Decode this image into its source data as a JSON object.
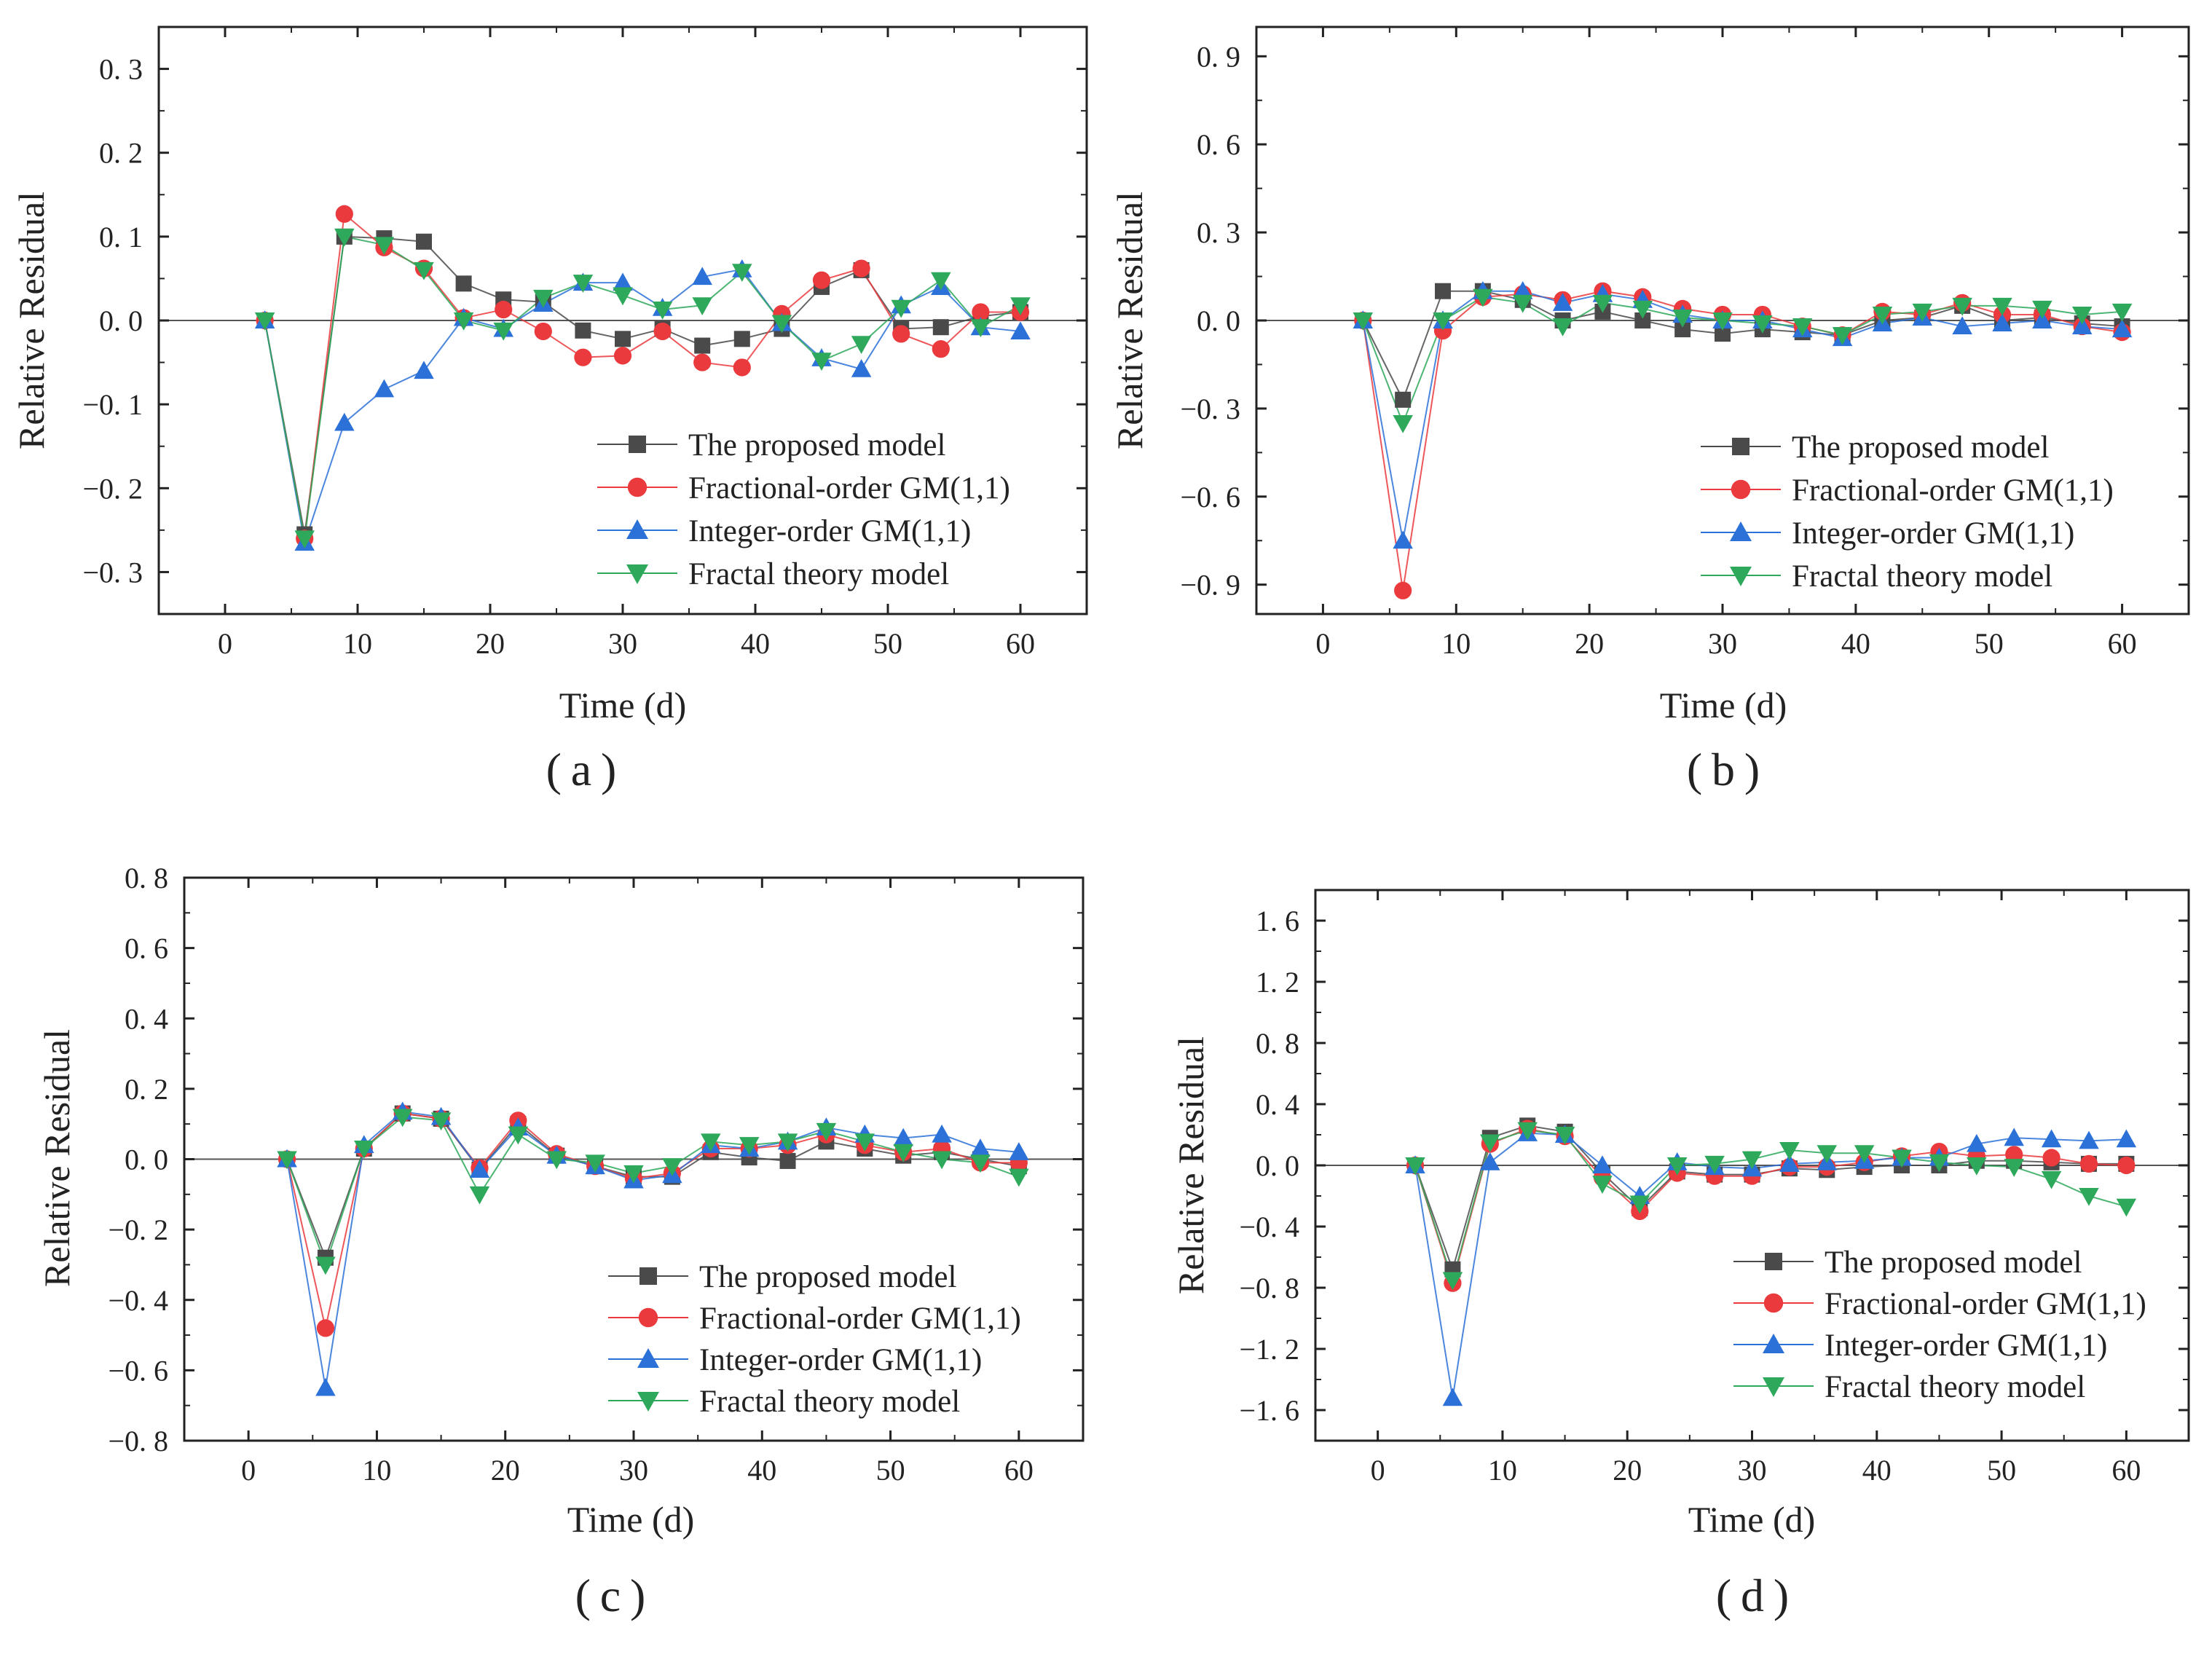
{
  "figure": {
    "panels": [
      "(a)",
      "(b)",
      "(c)",
      "(d)"
    ]
  },
  "colors": {
    "proposed": "#4a4a4a",
    "fractional": "#ea3a3d",
    "integer": "#2b71d8",
    "fractal": "#2ea85a"
  },
  "chart_data": [
    {
      "type": "line",
      "caption": "(a)",
      "xlabel": "Time (d)",
      "ylabel": "Relative Residual",
      "xlim": [
        -5,
        65
      ],
      "ylim": [
        -0.35,
        0.35
      ],
      "xticks": [
        0,
        10,
        20,
        30,
        40,
        50,
        60
      ],
      "xtick_labels": [
        "0",
        "10",
        "20",
        "30",
        "40",
        "50",
        "60"
      ],
      "yticks": [
        -0.3,
        -0.2,
        -0.1,
        0.0,
        0.1,
        0.2,
        0.3
      ],
      "ytick_labels": [
        "−0. 3",
        "−0. 2",
        "−0. 1",
        "0. 0",
        "0. 1",
        "0. 2",
        "0. 3"
      ],
      "legend_position": "bottom-right",
      "x": [
        3,
        6,
        9,
        12,
        15,
        18,
        21,
        24,
        27,
        30,
        33,
        36,
        39,
        42,
        45,
        48,
        51,
        54,
        57,
        60
      ],
      "series": [
        {
          "name": "The proposed model",
          "marker": "square",
          "color_key": "proposed",
          "values": [
            0,
            -0.255,
            0.1,
            0.098,
            0.094,
            0.044,
            0.025,
            0.022,
            -0.012,
            -0.022,
            -0.01,
            -0.03,
            -0.022,
            -0.01,
            0.04,
            0.06,
            -0.01,
            -0.008,
            0.005,
            0.01
          ]
        },
        {
          "name": "Fractional-order GM(1,1)",
          "marker": "circle",
          "color_key": "fractional",
          "values": [
            0,
            -0.26,
            0.127,
            0.087,
            0.062,
            0.003,
            0.013,
            -0.013,
            -0.044,
            -0.042,
            -0.013,
            -0.05,
            -0.056,
            0.008,
            0.048,
            0.062,
            -0.016,
            -0.034,
            0.01,
            0.01
          ]
        },
        {
          "name": "Integer-order GM(1,1)",
          "marker": "triangle-up",
          "color_key": "integer",
          "values": [
            0,
            -0.265,
            -0.122,
            -0.082,
            -0.06,
            0.003,
            -0.01,
            0.02,
            0.045,
            0.045,
            0.015,
            0.052,
            0.061,
            -0.003,
            -0.045,
            -0.058,
            0.018,
            0.04,
            -0.008,
            -0.013
          ]
        },
        {
          "name": "Fractal theory model",
          "marker": "triangle-down",
          "color_key": "fractal",
          "values": [
            0,
            -0.26,
            0.1,
            0.09,
            0.06,
            0.0,
            -0.012,
            0.027,
            0.045,
            0.03,
            0.013,
            0.018,
            0.058,
            -0.003,
            -0.048,
            -0.028,
            0.015,
            0.048,
            -0.008,
            0.018
          ]
        }
      ]
    },
    {
      "type": "line",
      "caption": "(b)",
      "xlabel": "Time (d)",
      "ylabel": "Relative Residual",
      "xlim": [
        -5,
        65
      ],
      "ylim": [
        -1.0,
        1.0
      ],
      "xticks": [
        0,
        10,
        20,
        30,
        40,
        50,
        60
      ],
      "xtick_labels": [
        "0",
        "10",
        "20",
        "30",
        "40",
        "50",
        "60"
      ],
      "yticks": [
        -0.9,
        -0.6,
        -0.3,
        0.0,
        0.3,
        0.6,
        0.9
      ],
      "ytick_labels": [
        "−0. 9",
        "−0. 6",
        "−0. 3",
        "0. 0",
        "0. 3",
        "0. 6",
        "0. 9"
      ],
      "legend_position": "bottom-right",
      "x": [
        3,
        6,
        9,
        12,
        15,
        18,
        21,
        24,
        27,
        30,
        33,
        36,
        39,
        42,
        45,
        48,
        51,
        54,
        57,
        60
      ],
      "series": [
        {
          "name": "The proposed model",
          "marker": "square",
          "color_key": "proposed",
          "values": [
            0,
            -0.27,
            0.1,
            0.1,
            0.07,
            0.0,
            0.03,
            0.0,
            -0.03,
            -0.045,
            -0.03,
            -0.04,
            -0.05,
            0.0,
            0.01,
            0.05,
            0.0,
            0.01,
            -0.01,
            -0.02
          ]
        },
        {
          "name": "Fractional-order GM(1,1)",
          "marker": "circle",
          "color_key": "fractional",
          "values": [
            0,
            -0.92,
            -0.035,
            0.08,
            0.09,
            0.07,
            0.1,
            0.08,
            0.04,
            0.02,
            0.02,
            -0.02,
            -0.05,
            0.03,
            0.02,
            0.06,
            0.02,
            0.02,
            -0.02,
            -0.04
          ]
        },
        {
          "name": "Integer-order GM(1,1)",
          "marker": "triangle-up",
          "color_key": "integer",
          "values": [
            0,
            -0.75,
            0.0,
            0.1,
            0.1,
            0.06,
            0.09,
            0.07,
            0.02,
            0.0,
            0.0,
            -0.03,
            -0.06,
            -0.01,
            0.01,
            -0.02,
            -0.01,
            0.0,
            -0.02,
            -0.03
          ]
        },
        {
          "name": "Fractal theory model",
          "marker": "triangle-down",
          "color_key": "fractal",
          "values": [
            0,
            -0.35,
            0.0,
            0.08,
            0.06,
            -0.02,
            0.06,
            0.04,
            0.01,
            0.0,
            -0.01,
            -0.02,
            -0.05,
            0.02,
            0.03,
            0.05,
            0.05,
            0.04,
            0.02,
            0.03
          ]
        }
      ]
    },
    {
      "type": "line",
      "caption": "(c)",
      "xlabel": "Time (d)",
      "ylabel": "Relative Residual",
      "xlim": [
        -5,
        65
      ],
      "ylim": [
        -0.8,
        0.8
      ],
      "xticks": [
        0,
        10,
        20,
        30,
        40,
        50,
        60
      ],
      "xtick_labels": [
        "0",
        "10",
        "20",
        "30",
        "40",
        "50",
        "60"
      ],
      "yticks": [
        -0.8,
        -0.6,
        -0.4,
        -0.2,
        0.0,
        0.2,
        0.4,
        0.6,
        0.8
      ],
      "ytick_labels": [
        "−0. 8",
        "−0. 6",
        "−0. 4",
        "−0. 2",
        "0. 0",
        "0. 2",
        "0. 4",
        "0. 6",
        "0. 8"
      ],
      "legend_position": "bottom-right",
      "x": [
        3,
        6,
        9,
        12,
        15,
        18,
        21,
        24,
        27,
        30,
        33,
        36,
        39,
        42,
        45,
        48,
        51,
        54,
        57,
        60
      ],
      "series": [
        {
          "name": "The proposed model",
          "marker": "square",
          "color_key": "proposed",
          "values": [
            0,
            -0.28,
            0.03,
            0.13,
            0.115,
            -0.03,
            0.1,
            0.01,
            -0.02,
            -0.05,
            -0.05,
            0.02,
            0.005,
            -0.005,
            0.05,
            0.03,
            0.01,
            0.02,
            0.0,
            -0.02
          ]
        },
        {
          "name": "Fractional-order GM(1,1)",
          "marker": "circle",
          "color_key": "fractional",
          "values": [
            0,
            -0.48,
            0.03,
            0.13,
            0.115,
            -0.025,
            0.11,
            0.015,
            -0.02,
            -0.055,
            -0.04,
            0.03,
            0.03,
            0.04,
            0.07,
            0.04,
            0.02,
            0.03,
            -0.01,
            -0.01
          ]
        },
        {
          "name": "Integer-order GM(1,1)",
          "marker": "triangle-up",
          "color_key": "integer",
          "values": [
            0,
            -0.65,
            0.04,
            0.135,
            0.12,
            -0.03,
            0.09,
            0.01,
            -0.02,
            -0.06,
            -0.045,
            0.04,
            0.03,
            0.05,
            0.09,
            0.07,
            0.06,
            0.07,
            0.03,
            0.02
          ]
        },
        {
          "name": "Fractal theory model",
          "marker": "triangle-down",
          "color_key": "fractal",
          "values": [
            0,
            -0.3,
            0.03,
            0.12,
            0.11,
            -0.1,
            0.07,
            0.0,
            -0.01,
            -0.04,
            -0.02,
            0.05,
            0.04,
            0.05,
            0.08,
            0.05,
            0.02,
            0.0,
            -0.01,
            -0.05
          ]
        }
      ]
    },
    {
      "type": "line",
      "caption": "(d)",
      "xlabel": "Time (d)",
      "ylabel": "Relative Residual",
      "xlim": [
        -5,
        65
      ],
      "ylim": [
        -1.8,
        1.8
      ],
      "xticks": [
        0,
        10,
        20,
        30,
        40,
        50,
        60
      ],
      "xtick_labels": [
        "0",
        "10",
        "20",
        "30",
        "40",
        "50",
        "60"
      ],
      "yticks": [
        -1.6,
        -1.2,
        -0.8,
        -0.4,
        0.0,
        0.4,
        0.8,
        1.2,
        1.6
      ],
      "ytick_labels": [
        "−1. 6",
        "−1. 2",
        "−0. 8",
        "−0. 4",
        "0. 0",
        "0. 4",
        "0. 8",
        "1. 2",
        "1. 6"
      ],
      "legend_position": "bottom-right",
      "x": [
        3,
        6,
        9,
        12,
        15,
        18,
        21,
        24,
        27,
        30,
        33,
        36,
        39,
        42,
        45,
        48,
        51,
        54,
        57,
        60
      ],
      "series": [
        {
          "name": "The proposed model",
          "marker": "square",
          "color_key": "proposed",
          "values": [
            0,
            -0.68,
            0.18,
            0.26,
            0.22,
            -0.05,
            -0.28,
            -0.04,
            -0.06,
            -0.06,
            -0.02,
            -0.03,
            -0.01,
            0.0,
            0.0,
            0.03,
            0.03,
            0.02,
            0.01,
            0.01
          ]
        },
        {
          "name": "Fractional-order GM(1,1)",
          "marker": "circle",
          "color_key": "fractional",
          "values": [
            0,
            -0.77,
            0.14,
            0.24,
            0.19,
            -0.08,
            -0.3,
            -0.05,
            -0.07,
            -0.07,
            -0.01,
            -0.01,
            0.02,
            0.06,
            0.09,
            0.06,
            0.07,
            0.05,
            0.01,
            0.0
          ]
        },
        {
          "name": "Integer-order GM(1,1)",
          "marker": "triangle-up",
          "color_key": "integer",
          "values": [
            0,
            -1.52,
            0.02,
            0.21,
            0.2,
            0.0,
            -0.2,
            0.02,
            -0.01,
            -0.02,
            0.01,
            0.02,
            0.03,
            0.05,
            0.05,
            0.14,
            0.18,
            0.17,
            0.16,
            0.17
          ]
        },
        {
          "name": "Fractal theory model",
          "marker": "triangle-down",
          "color_key": "fractal",
          "values": [
            0,
            -0.75,
            0.15,
            0.23,
            0.2,
            -0.12,
            -0.25,
            0.0,
            0.01,
            0.04,
            0.1,
            0.08,
            0.08,
            0.05,
            0.02,
            0.0,
            -0.01,
            -0.09,
            -0.2,
            -0.27
          ]
        }
      ]
    }
  ]
}
